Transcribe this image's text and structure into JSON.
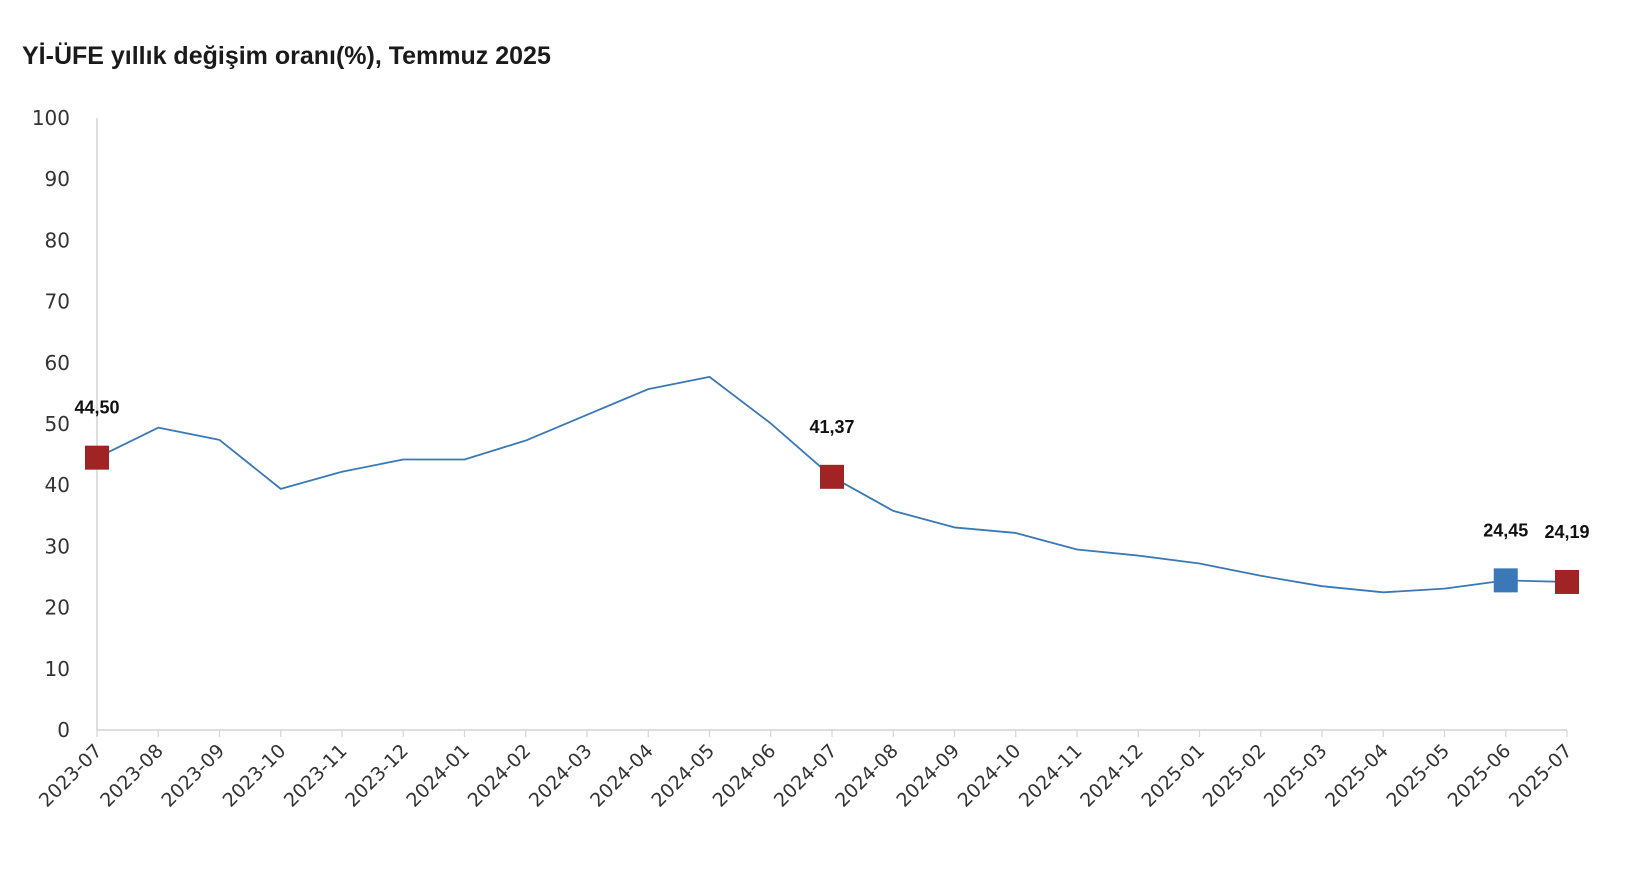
{
  "chart_data": {
    "type": "line",
    "title": "Yİ-ÜFE yıllık değişim oranı(%), Temmuz 2025",
    "xlabel": "",
    "ylabel": "",
    "ylim": [
      0,
      100
    ],
    "yticks": [
      0,
      10,
      20,
      30,
      40,
      50,
      60,
      70,
      80,
      90,
      100
    ],
    "grid": false,
    "legend": "none",
    "categories": [
      "2023-07",
      "2023-08",
      "2023-09",
      "2023-10",
      "2023-11",
      "2023-12",
      "2024-01",
      "2024-02",
      "2024-03",
      "2024-04",
      "2024-05",
      "2024-06",
      "2024-07",
      "2024-08",
      "2024-09",
      "2024-10",
      "2024-11",
      "2024-12",
      "2025-01",
      "2025-02",
      "2025-03",
      "2025-04",
      "2025-05",
      "2025-06",
      "2025-07"
    ],
    "series": [
      {
        "color": "#3a78b8",
        "values": [
          44.5,
          49.4,
          47.4,
          39.4,
          42.2,
          44.2,
          44.2,
          47.3,
          51.5,
          55.7,
          57.7,
          50.1,
          41.37,
          35.8,
          33.1,
          32.2,
          29.5,
          28.5,
          27.2,
          25.2,
          23.5,
          22.5,
          23.1,
          24.45,
          24.19
        ]
      }
    ],
    "highlights": [
      {
        "index": 0,
        "label": "44,50",
        "color": "#a02424"
      },
      {
        "index": 12,
        "label": "41,37",
        "color": "#a02424"
      },
      {
        "index": 23,
        "label": "24,45",
        "color": "#3a78b8"
      },
      {
        "index": 24,
        "label": "24,19",
        "color": "#a02424"
      }
    ]
  }
}
